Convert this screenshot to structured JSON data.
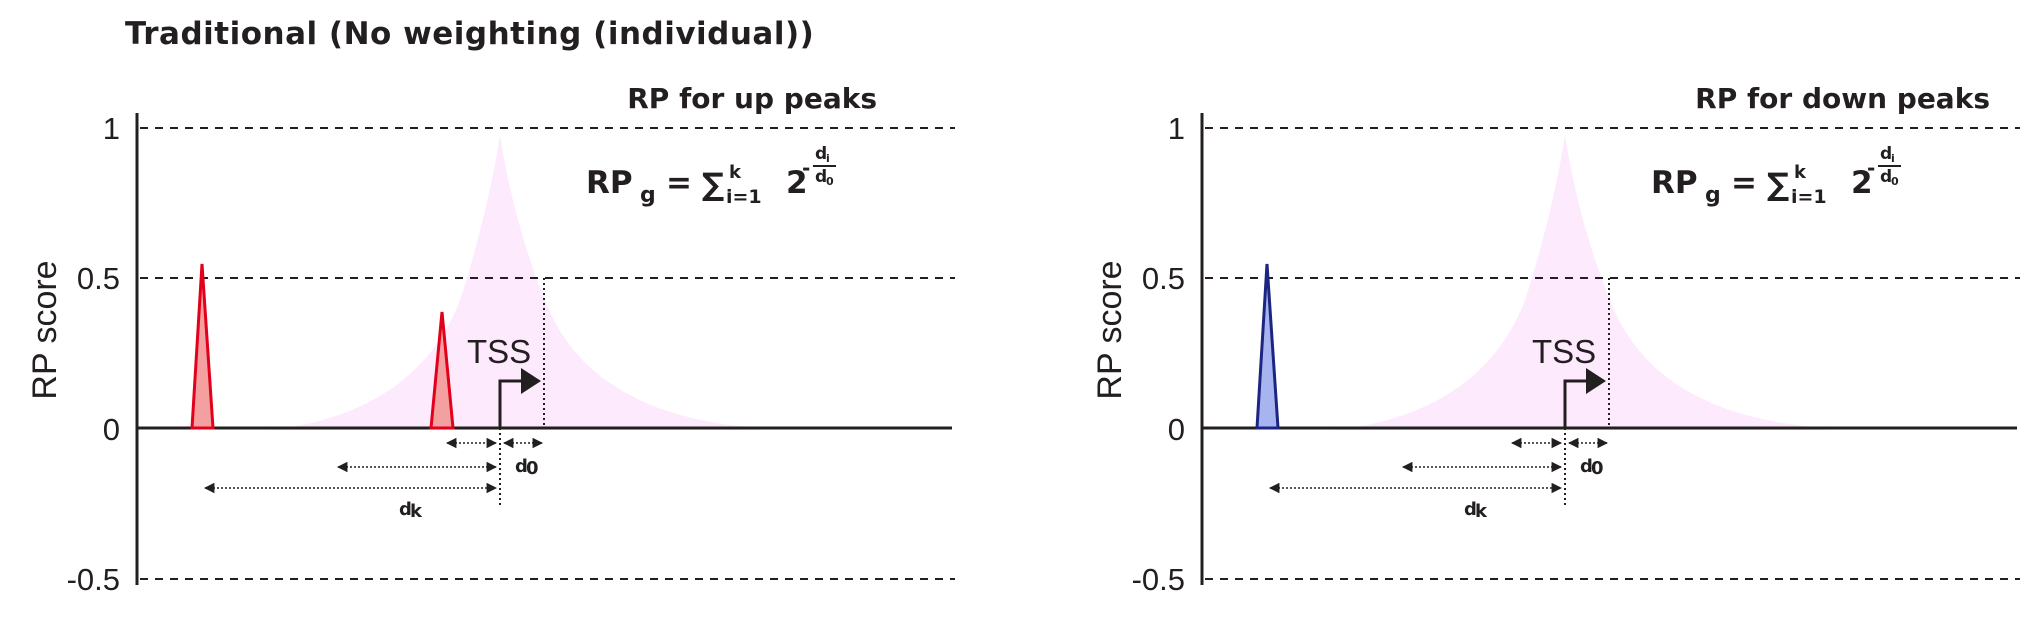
{
  "title": "Traditional (No weighting (individual))",
  "y_axis": {
    "label": "RP score",
    "ticks": [
      "1",
      "0.5",
      "0",
      "-0.5"
    ]
  },
  "formula": {
    "lhs": "RP",
    "lhs_sub": "g",
    "eq": "=",
    "sum": "∑",
    "sum_sup": "k",
    "sum_sub": "i=1",
    "base": "2",
    "minus": "-",
    "num": "d",
    "num_sub": "i",
    "den": "d",
    "den_sub": "0"
  },
  "tss_label": "TSS",
  "distance_labels": {
    "d0": "d",
    "d0_sub": "0",
    "dk": "d",
    "dk_sub": "k"
  },
  "panels": [
    {
      "id": "up",
      "title": "RP for up peaks",
      "peak_fill": "#f4a0a0",
      "peak_stroke": "#e2001a",
      "peaks": [
        {
          "height": 0.55
        },
        {
          "height": 0.38
        }
      ]
    },
    {
      "id": "down",
      "title": "RP for down peaks",
      "peak_fill": "#a8b4f0",
      "peak_stroke": "#1c2580",
      "peaks": [
        {
          "height": 0.55
        }
      ]
    }
  ],
  "colors": {
    "decay_fill": "#fdeafd",
    "axis": "#231f20"
  }
}
